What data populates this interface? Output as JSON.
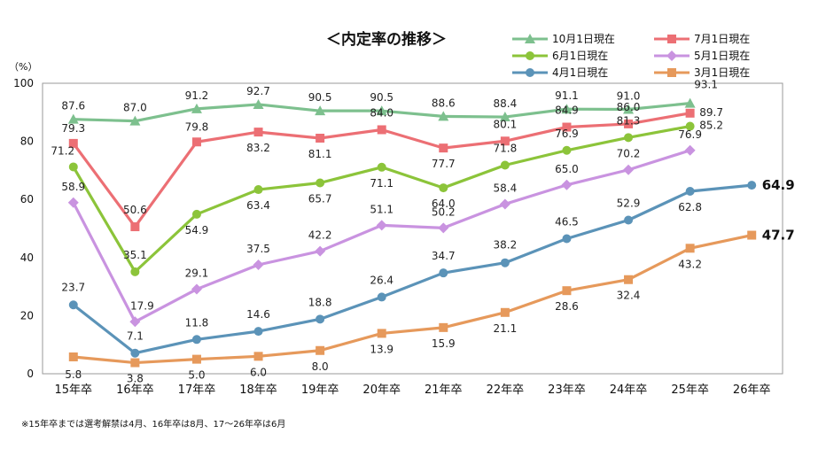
{
  "chart_data": {
    "type": "line",
    "title": "＜内定率の推移＞",
    "ylabel": "（%）",
    "ylim": [
      0,
      100
    ],
    "yticks": [
      "0",
      "20",
      "40",
      "60",
      "80",
      "100"
    ],
    "categories": [
      "15年卒",
      "16年卒",
      "17年卒",
      "18年卒",
      "19年卒",
      "20年卒",
      "21年卒",
      "22年卒",
      "23年卒",
      "24年卒",
      "25年卒",
      "26年卒"
    ],
    "series": [
      {
        "name": "10月1日現在",
        "color": "#7dc08e",
        "marker": "triangle",
        "values": [
          87.6,
          87.0,
          91.2,
          92.7,
          90.5,
          90.5,
          88.6,
          88.4,
          91.1,
          91.0,
          93.1,
          null
        ],
        "labels": [
          "87.6",
          "87.0",
          "91.2",
          "92.7",
          "90.5",
          "90.5",
          "88.6",
          "88.4",
          "91.1",
          "91.0",
          "93.1",
          null
        ]
      },
      {
        "name": "7月1日現在",
        "color": "#ec6f74",
        "marker": "square",
        "values": [
          79.3,
          50.6,
          79.8,
          83.2,
          81.1,
          84.0,
          77.7,
          80.1,
          84.9,
          86.0,
          89.7,
          null
        ],
        "labels": [
          "79.3",
          "50.6",
          "79.8",
          "83.2",
          "81.1",
          "84.0",
          "77.7",
          "80.1",
          "84.9",
          "86.0",
          "89.7",
          null
        ]
      },
      {
        "name": "6月1日現在",
        "color": "#8cc43a",
        "marker": "circle",
        "values": [
          71.2,
          35.1,
          54.9,
          63.4,
          65.7,
          71.1,
          64.0,
          71.8,
          76.9,
          81.3,
          85.2,
          null
        ],
        "labels": [
          "71.2",
          "35.1",
          "54.9",
          "63.4",
          "65.7",
          "71.1",
          "64.0",
          "71.8",
          "76.9",
          "81.3",
          "85.2",
          null
        ]
      },
      {
        "name": "5月1日現在",
        "color": "#c993e0",
        "marker": "diamond",
        "values": [
          58.9,
          17.9,
          29.1,
          37.5,
          42.2,
          51.1,
          50.2,
          58.4,
          65.0,
          70.2,
          76.9,
          null
        ],
        "labels": [
          "58.9",
          "17.9",
          "29.1",
          "37.5",
          "42.2",
          "51.1",
          "50.2",
          "58.4",
          "65.0",
          "70.2",
          "76.9",
          null
        ]
      },
      {
        "name": "4月1日現在",
        "color": "#5b93b8",
        "marker": "circle",
        "values": [
          23.7,
          7.1,
          11.8,
          14.6,
          18.8,
          26.4,
          34.7,
          38.2,
          46.5,
          52.9,
          62.8,
          64.9
        ],
        "labels": [
          "23.7",
          "7.1",
          "11.8",
          "14.6",
          "18.8",
          "26.4",
          "34.7",
          "38.2",
          "46.5",
          "52.9",
          "62.8",
          "64.9"
        ]
      },
      {
        "name": "3月1日現在",
        "color": "#e6995b",
        "marker": "square",
        "values": [
          5.8,
          3.8,
          5.0,
          6.0,
          8.0,
          13.9,
          15.9,
          21.1,
          28.6,
          32.4,
          43.2,
          47.7
        ],
        "labels": [
          "5.8",
          "3.8",
          "5.0",
          "6.0",
          "8.0",
          "13.9",
          "15.9",
          "21.1",
          "28.6",
          "32.4",
          "43.2",
          "47.7"
        ]
      }
    ],
    "legend": "top-right, two columns",
    "grid": false,
    "footnote": "※15年卒までは選考解禁は4月、16年卒は8月、17～26年卒は6月"
  }
}
